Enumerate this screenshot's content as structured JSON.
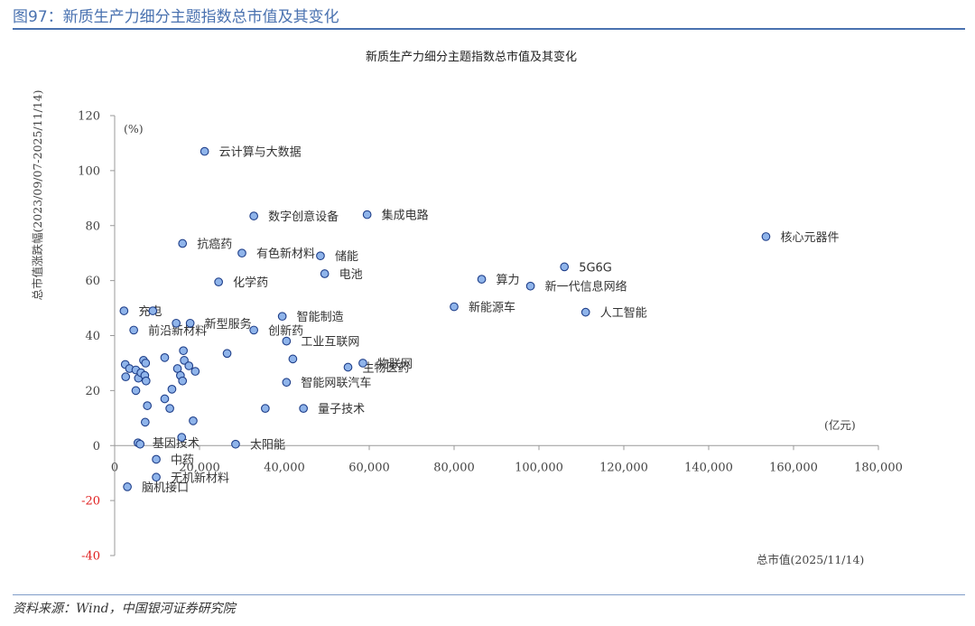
{
  "page": {
    "figure_title": "图97：新质生产力细分主题指数总市值及其变化",
    "source": "资料来源：Wind，中国银河证券研究院"
  },
  "chart_data": {
    "type": "scatter",
    "title": "新质生产力细分主题指数总市值及其变化",
    "xlabel": "总市值(2025/11/14)",
    "ylabel": "总市值涨跌幅(2023/09/07-2025/11/14)",
    "x_unit": "(亿元)",
    "y_unit": "(%)",
    "xlim": [
      0,
      180000
    ],
    "ylim": [
      -40,
      120
    ],
    "x_ticks": [
      "0",
      "20,000",
      "40,000",
      "60,000",
      "80,000",
      "100,000",
      "120,000",
      "140,000",
      "160,000",
      "180,000"
    ],
    "y_ticks": [
      "120",
      "100",
      "80",
      "60",
      "40",
      "20",
      "0",
      "-20",
      "-40"
    ],
    "grid": false,
    "marker_color": "#8fb4ea",
    "marker_edge": "#1f3f8a",
    "points": [
      {
        "x": 21200,
        "y": 107,
        "label": "云计算与大数据"
      },
      {
        "x": 32800,
        "y": 83.5,
        "label": "数字创意设备"
      },
      {
        "x": 59500,
        "y": 84,
        "label": "集成电路"
      },
      {
        "x": 153500,
        "y": 76,
        "label": "核心元器件"
      },
      {
        "x": 16000,
        "y": 73.5,
        "label": "抗癌药"
      },
      {
        "x": 30000,
        "y": 70,
        "label": "有色新材料"
      },
      {
        "x": 48500,
        "y": 69,
        "label": "储能"
      },
      {
        "x": 49500,
        "y": 62.5,
        "label": "电池"
      },
      {
        "x": 24500,
        "y": 59.5,
        "label": "化学药"
      },
      {
        "x": 86500,
        "y": 60.5,
        "label": "算力"
      },
      {
        "x": 106000,
        "y": 65,
        "label": "5G6G"
      },
      {
        "x": 98000,
        "y": 58,
        "label": "新一代信息网络"
      },
      {
        "x": 80000,
        "y": 50.5,
        "label": "新能源车"
      },
      {
        "x": 111000,
        "y": 48.5,
        "label": "人工智能"
      },
      {
        "x": 2200,
        "y": 49,
        "label": "充电"
      },
      {
        "x": 39500,
        "y": 47,
        "label": "智能制造"
      },
      {
        "x": 4500,
        "y": 42,
        "label": "前沿新材料"
      },
      {
        "x": 17800,
        "y": 44.5,
        "label": "新型服务"
      },
      {
        "x": 32800,
        "y": 42,
        "label": "创新药"
      },
      {
        "x": 40500,
        "y": 38,
        "label": "工业互联网"
      },
      {
        "x": 55000,
        "y": 28.5,
        "label": "生物医药"
      },
      {
        "x": 58500,
        "y": 30,
        "label": "物联网"
      },
      {
        "x": 40500,
        "y": 23,
        "label": "智能网联汽车"
      },
      {
        "x": 44500,
        "y": 13.5,
        "label": "量子技术"
      },
      {
        "x": 5500,
        "y": 1,
        "label": "基因技术"
      },
      {
        "x": 28500,
        "y": 0.5,
        "label": "太阳能"
      },
      {
        "x": 9800,
        "y": -5,
        "label": "中药"
      },
      {
        "x": 9800,
        "y": -11.5,
        "label": "无机新材料"
      },
      {
        "x": 3000,
        "y": -15,
        "label": "脑机接口"
      },
      {
        "x": 9000,
        "y": 49,
        "label": ""
      },
      {
        "x": 14500,
        "y": 44.5,
        "label": ""
      },
      {
        "x": 2500,
        "y": 29.5,
        "label": ""
      },
      {
        "x": 2600,
        "y": 25,
        "label": ""
      },
      {
        "x": 3500,
        "y": 28,
        "label": ""
      },
      {
        "x": 5000,
        "y": 27.5,
        "label": ""
      },
      {
        "x": 5600,
        "y": 24.5,
        "label": ""
      },
      {
        "x": 6200,
        "y": 26.5,
        "label": ""
      },
      {
        "x": 6800,
        "y": 31,
        "label": ""
      },
      {
        "x": 7300,
        "y": 30,
        "label": ""
      },
      {
        "x": 7100,
        "y": 25.5,
        "label": ""
      },
      {
        "x": 7400,
        "y": 23.5,
        "label": ""
      },
      {
        "x": 5000,
        "y": 20,
        "label": ""
      },
      {
        "x": 7700,
        "y": 14.5,
        "label": ""
      },
      {
        "x": 7200,
        "y": 8.5,
        "label": ""
      },
      {
        "x": 11800,
        "y": 32,
        "label": ""
      },
      {
        "x": 16200,
        "y": 34.5,
        "label": ""
      },
      {
        "x": 16400,
        "y": 31,
        "label": ""
      },
      {
        "x": 14800,
        "y": 28,
        "label": ""
      },
      {
        "x": 15500,
        "y": 25.5,
        "label": ""
      },
      {
        "x": 16000,
        "y": 23.5,
        "label": ""
      },
      {
        "x": 17500,
        "y": 29,
        "label": ""
      },
      {
        "x": 19000,
        "y": 27,
        "label": ""
      },
      {
        "x": 13500,
        "y": 20.5,
        "label": ""
      },
      {
        "x": 11800,
        "y": 17,
        "label": ""
      },
      {
        "x": 13000,
        "y": 13.5,
        "label": ""
      },
      {
        "x": 18500,
        "y": 9,
        "label": ""
      },
      {
        "x": 26500,
        "y": 33.5,
        "label": ""
      },
      {
        "x": 42000,
        "y": 31.5,
        "label": ""
      },
      {
        "x": 35500,
        "y": 13.5,
        "label": ""
      },
      {
        "x": 15800,
        "y": 3,
        "label": ""
      },
      {
        "x": 6000,
        "y": 0.5,
        "label": ""
      }
    ]
  }
}
